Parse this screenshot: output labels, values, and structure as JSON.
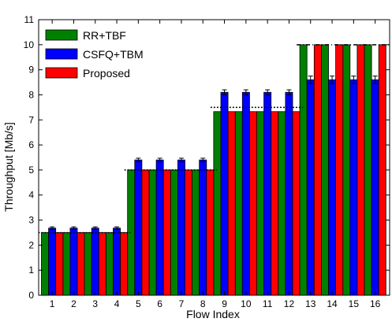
{
  "chart_data": {
    "type": "bar",
    "title": "",
    "xlabel": "Flow Index",
    "ylabel": "Throughput [Mb/s]",
    "ylim": [
      0,
      11
    ],
    "yticks": [
      "0",
      "1",
      "2",
      "3",
      "4",
      "5",
      "6",
      "7",
      "8",
      "9",
      "10",
      "11"
    ],
    "categories": [
      "1",
      "2",
      "3",
      "4",
      "5",
      "6",
      "7",
      "8",
      "9",
      "10",
      "11",
      "12",
      "13",
      "14",
      "15",
      "16"
    ],
    "legend_position": "top-left",
    "grid": false,
    "series": [
      {
        "name": "RR+TBF",
        "color": "#008000",
        "values": [
          2.5,
          2.5,
          2.5,
          2.5,
          5.0,
          5.0,
          5.0,
          5.0,
          7.33,
          7.33,
          7.33,
          7.33,
          10.0,
          10.0,
          10.0,
          10.0
        ],
        "error": [
          0,
          0,
          0,
          0,
          0,
          0,
          0,
          0,
          0,
          0,
          0,
          0,
          0,
          0,
          0,
          0
        ]
      },
      {
        "name": "CSFQ+TBM",
        "color": "#0000ff",
        "values": [
          2.68,
          2.68,
          2.68,
          2.68,
          5.4,
          5.4,
          5.4,
          5.4,
          8.1,
          8.1,
          8.1,
          8.1,
          8.6,
          8.6,
          8.6,
          8.6
        ],
        "error": [
          0.05,
          0.05,
          0.05,
          0.05,
          0.07,
          0.07,
          0.07,
          0.07,
          0.1,
          0.1,
          0.1,
          0.1,
          0.15,
          0.15,
          0.15,
          0.15
        ]
      },
      {
        "name": "Proposed",
        "color": "#ff0000",
        "values": [
          2.5,
          2.5,
          2.5,
          2.5,
          5.0,
          5.0,
          5.0,
          5.0,
          7.33,
          7.33,
          7.33,
          7.33,
          10.0,
          10.0,
          10.0,
          10.0
        ],
        "error": [
          0,
          0,
          0,
          0,
          0,
          0,
          0,
          0,
          0,
          0,
          0,
          0,
          0,
          0,
          0,
          0
        ]
      }
    ],
    "reference_lines": [
      {
        "style": "dotted",
        "value": 2.5,
        "from_category": "1",
        "to_category": "4"
      },
      {
        "style": "dotted",
        "value": 5.0,
        "from_category": "5",
        "to_category": "8"
      },
      {
        "style": "dotted",
        "value": 7.5,
        "from_category": "9",
        "to_category": "12"
      },
      {
        "style": "dashdot",
        "value": 10.0,
        "from_category": "13",
        "to_category": "16"
      }
    ]
  }
}
